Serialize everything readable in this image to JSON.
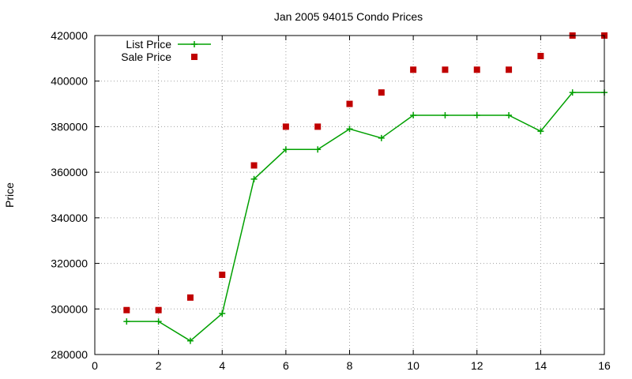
{
  "chart_data": {
    "type": "line",
    "title": "Jan 2005 94015 Condo Prices",
    "xlabel": "",
    "ylabel": "Price",
    "xlim": [
      0,
      16
    ],
    "ylim": [
      280000,
      420000
    ],
    "x_ticks": [
      0,
      2,
      4,
      6,
      8,
      10,
      12,
      14,
      16
    ],
    "y_ticks": [
      280000,
      300000,
      320000,
      340000,
      360000,
      380000,
      400000,
      420000
    ],
    "grid": true,
    "legend_position": "top-left",
    "series": [
      {
        "name": "List Price",
        "style": "line-points",
        "marker": "plus",
        "color": "#00a000",
        "x": [
          1,
          2,
          3,
          4,
          5,
          6,
          7,
          8,
          9,
          10,
          11,
          12,
          13,
          14,
          15,
          16
        ],
        "y": [
          294500,
          294500,
          286000,
          298000,
          357000,
          370000,
          370000,
          379000,
          375000,
          385000,
          385000,
          385000,
          385000,
          378000,
          395000,
          395000
        ]
      },
      {
        "name": "Sale Price",
        "style": "points",
        "marker": "square",
        "color": "#c00000",
        "x": [
          1,
          2,
          3,
          4,
          5,
          6,
          7,
          8,
          9,
          10,
          11,
          12,
          13,
          14,
          15,
          16
        ],
        "y": [
          299500,
          299500,
          305000,
          315000,
          363000,
          380000,
          380000,
          390000,
          395000,
          405000,
          405000,
          405000,
          405000,
          411000,
          420000,
          420000
        ]
      }
    ]
  }
}
